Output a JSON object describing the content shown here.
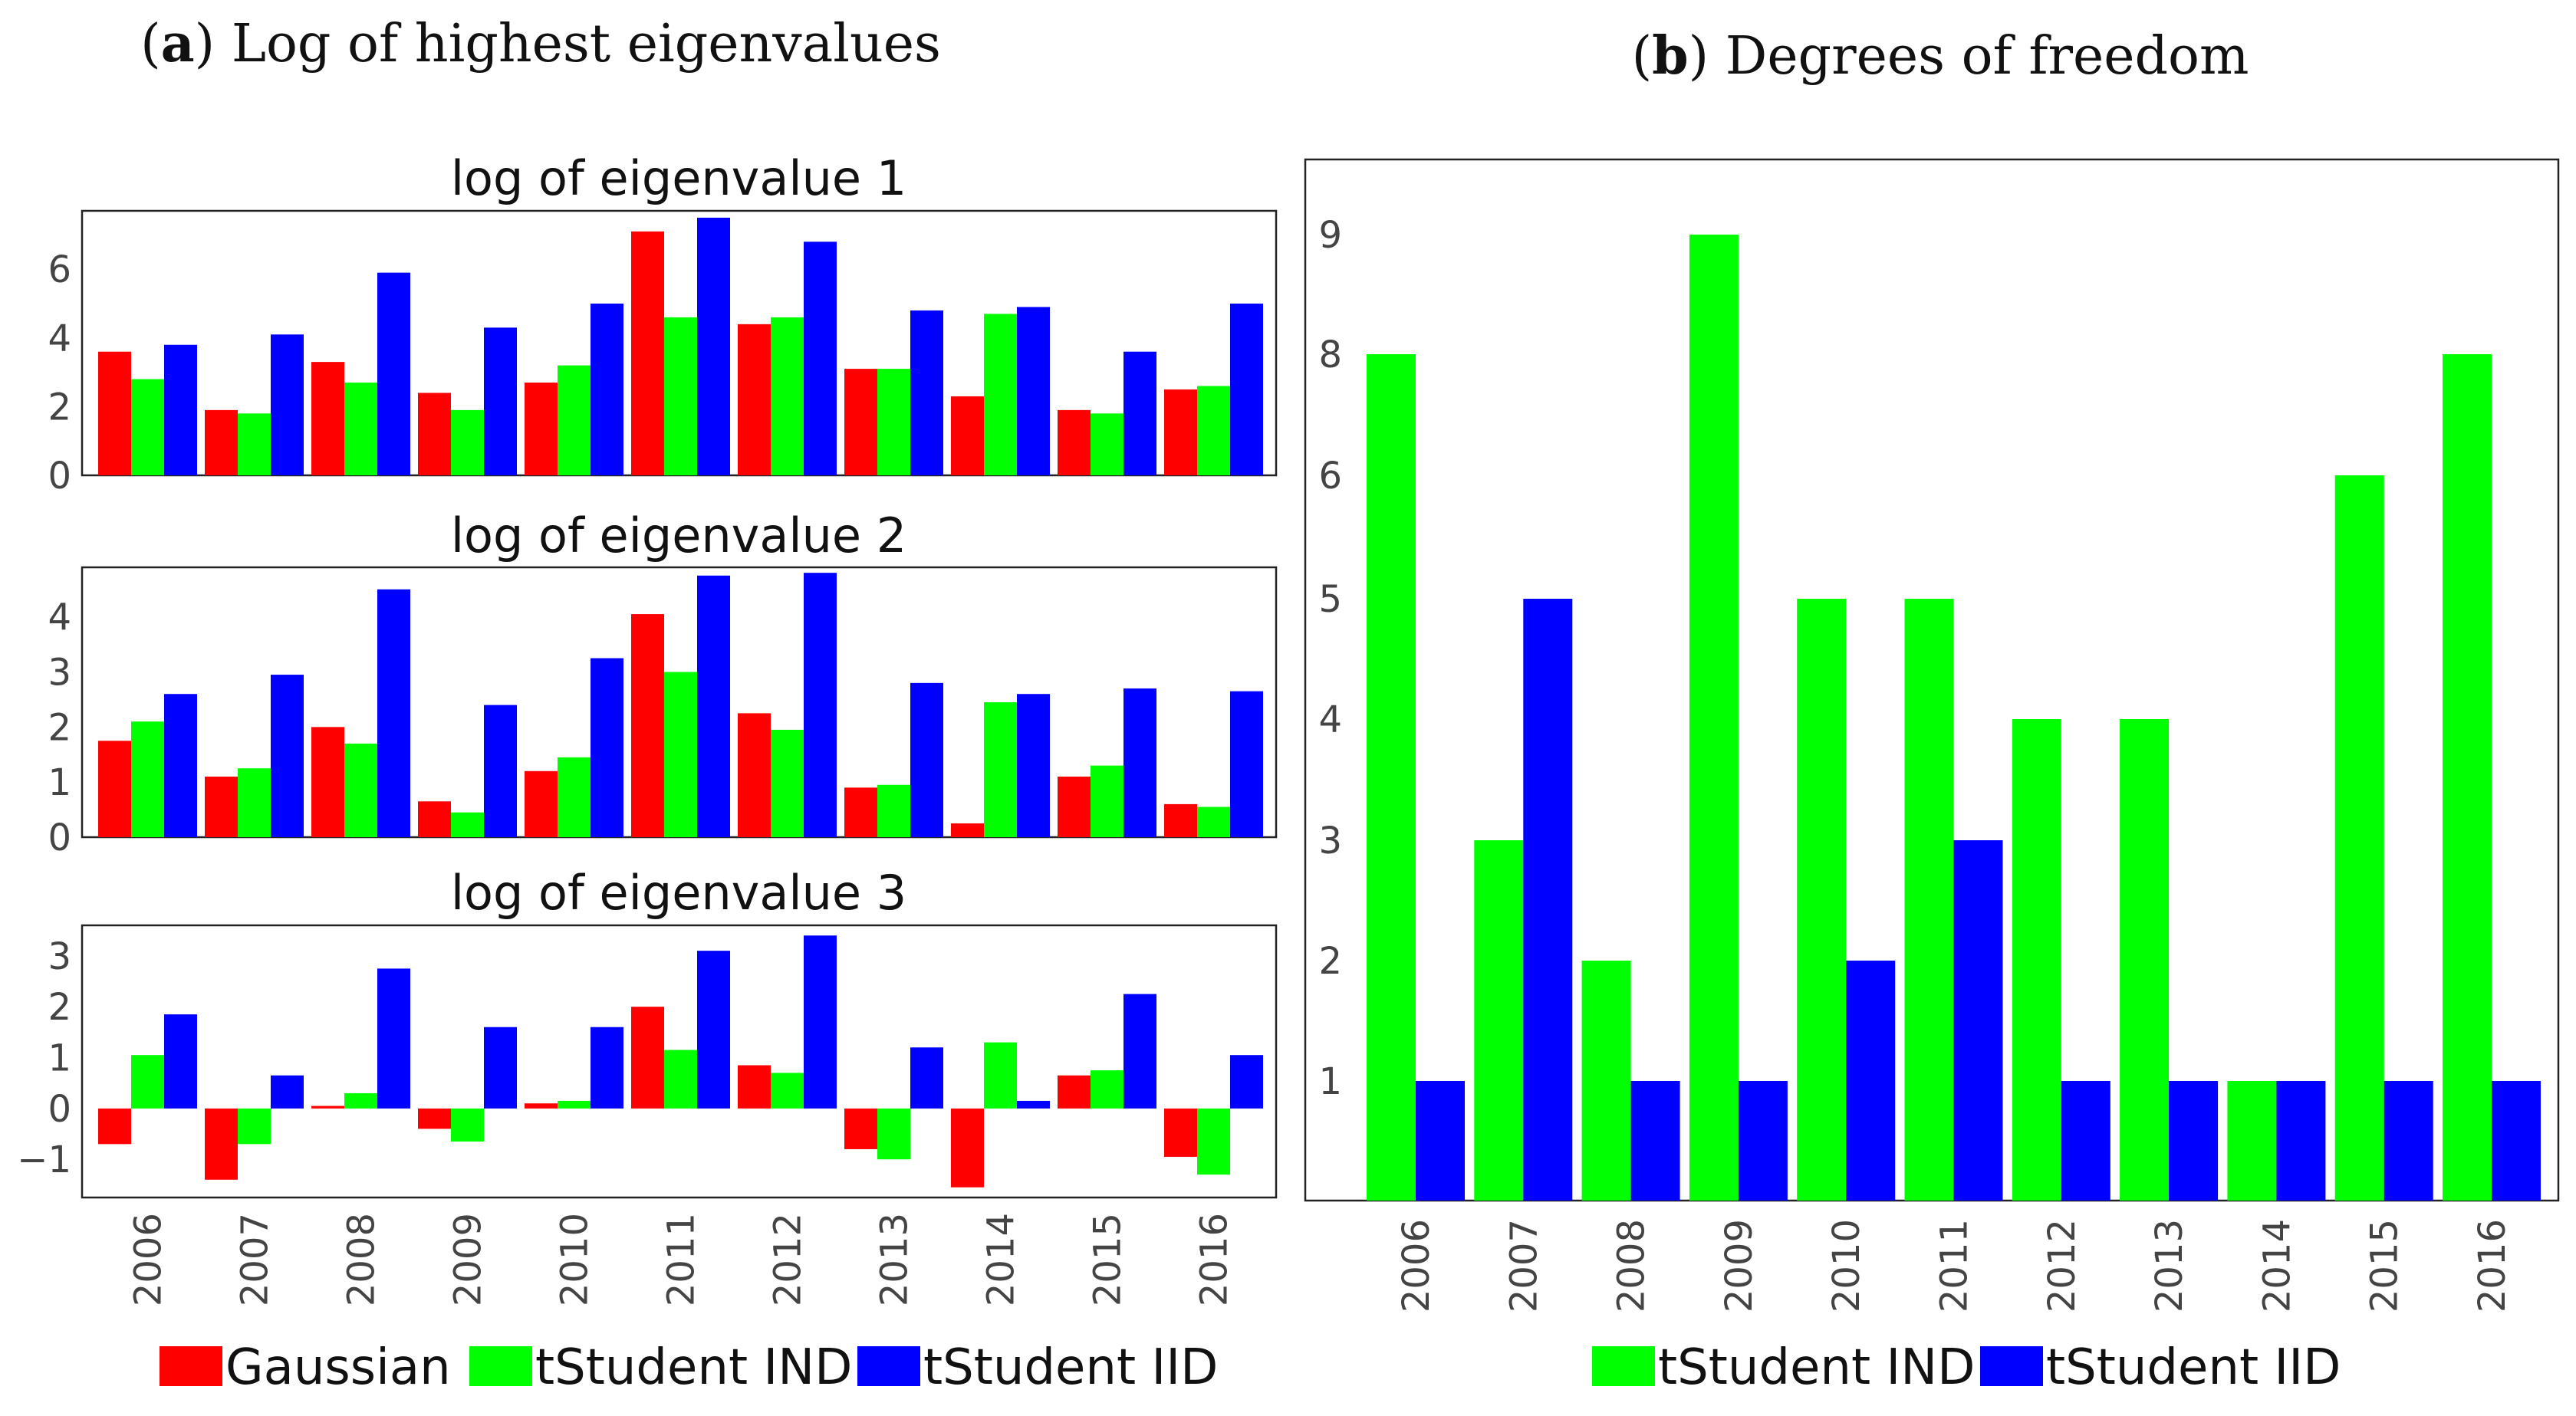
{
  "chart_data": [
    {
      "id": "a1",
      "type": "bar",
      "panel_title_letter": "a",
      "panel_title_rest": "Log of highest eigenvalues",
      "title": "log of eigenvalue 1",
      "categories": [
        "2006",
        "2007",
        "2008",
        "2009",
        "2010",
        "2011",
        "2012",
        "2013",
        "2014",
        "2015",
        "2016"
      ],
      "series": [
        {
          "name": "Gaussian",
          "color": "#ff0000",
          "values": [
            3.6,
            1.9,
            3.3,
            2.4,
            2.7,
            7.1,
            4.4,
            3.1,
            2.3,
            1.9,
            2.5
          ]
        },
        {
          "name": "tStudent IND",
          "color": "#00ff00",
          "values": [
            2.8,
            1.8,
            2.7,
            1.9,
            3.2,
            4.6,
            4.6,
            3.1,
            4.7,
            1.8,
            2.6
          ]
        },
        {
          "name": "tStudent IID",
          "color": "#0000ff",
          "values": [
            3.8,
            4.1,
            5.9,
            4.3,
            5.0,
            7.5,
            6.8,
            4.8,
            4.9,
            3.6,
            5.0
          ]
        }
      ],
      "ylim": [
        0,
        7.7
      ],
      "yticks": [
        0,
        2,
        4,
        6
      ],
      "ytick_labels": [
        "0",
        "2",
        "4",
        "6"
      ]
    },
    {
      "id": "a2",
      "type": "bar",
      "title": "log of eigenvalue 2",
      "categories": [
        "2006",
        "2007",
        "2008",
        "2009",
        "2010",
        "2011",
        "2012",
        "2013",
        "2014",
        "2015",
        "2016"
      ],
      "series": [
        {
          "name": "Gaussian",
          "color": "#ff0000",
          "values": [
            1.75,
            1.1,
            2.0,
            0.65,
            1.2,
            4.05,
            2.25,
            0.9,
            0.25,
            1.1,
            0.6
          ]
        },
        {
          "name": "tStudent IND",
          "color": "#00ff00",
          "values": [
            2.1,
            1.25,
            1.7,
            0.45,
            1.45,
            3.0,
            1.95,
            0.95,
            2.45,
            1.3,
            0.55
          ]
        },
        {
          "name": "tStudent IID",
          "color": "#0000ff",
          "values": [
            2.6,
            2.95,
            4.5,
            2.4,
            3.25,
            4.75,
            4.8,
            2.8,
            2.6,
            2.7,
            2.65
          ]
        }
      ],
      "ylim": [
        0,
        4.9
      ],
      "yticks": [
        0,
        1,
        2,
        3,
        4
      ],
      "ytick_labels": [
        "0",
        "1",
        "2",
        "3",
        "4"
      ]
    },
    {
      "id": "a3",
      "type": "bar",
      "title": "log of eigenvalue 3",
      "categories": [
        "2006",
        "2007",
        "2008",
        "2009",
        "2010",
        "2011",
        "2012",
        "2013",
        "2014",
        "2015",
        "2016"
      ],
      "series": [
        {
          "name": "Gaussian",
          "color": "#ff0000",
          "values": [
            -0.7,
            -1.4,
            0.05,
            -0.4,
            0.1,
            2.0,
            0.85,
            -0.8,
            -1.55,
            0.65,
            -0.95
          ]
        },
        {
          "name": "tStudent IND",
          "color": "#00ff00",
          "values": [
            1.05,
            -0.7,
            0.3,
            -0.65,
            0.15,
            1.15,
            0.7,
            -1.0,
            1.3,
            0.75,
            -1.3
          ]
        },
        {
          "name": "tStudent IID",
          "color": "#0000ff",
          "values": [
            1.85,
            0.65,
            2.75,
            1.6,
            1.6,
            3.1,
            3.4,
            1.2,
            0.15,
            2.25,
            1.05
          ]
        }
      ],
      "ylim": [
        -1.75,
        3.6
      ],
      "yticks": [
        -1,
        0,
        1,
        2,
        3
      ],
      "ytick_labels": [
        "−1",
        "0",
        "1",
        "2",
        "3"
      ]
    },
    {
      "id": "b",
      "type": "bar",
      "panel_title_letter": "b",
      "panel_title_rest": "Degrees of freedom",
      "title": "",
      "categories": [
        "2006",
        "2007",
        "2008",
        "2009",
        "2010",
        "2011",
        "2012",
        "2013",
        "2014",
        "2015",
        "2016"
      ],
      "series": [
        {
          "name": "tStudent IND",
          "color": "#00ff00",
          "values": [
            8,
            3,
            2,
            9,
            5,
            5,
            4,
            4,
            1,
            6,
            8
          ]
        },
        {
          "name": "tStudent IID",
          "color": "#0000ff",
          "values": [
            1,
            5,
            1,
            1,
            2,
            3,
            1,
            1,
            1,
            1,
            1
          ]
        }
      ],
      "yticks": [
        1,
        2,
        3,
        4,
        5,
        6,
        8,
        9
      ],
      "ytick_labels": [
        "1",
        "2",
        "3",
        "4",
        "5",
        "6",
        "8",
        "9"
      ]
    }
  ],
  "legend_a": [
    "Gaussian",
    "tStudent IND",
    "tStudent IID"
  ],
  "legend_b": [
    "tStudent IND",
    "tStudent IID"
  ]
}
